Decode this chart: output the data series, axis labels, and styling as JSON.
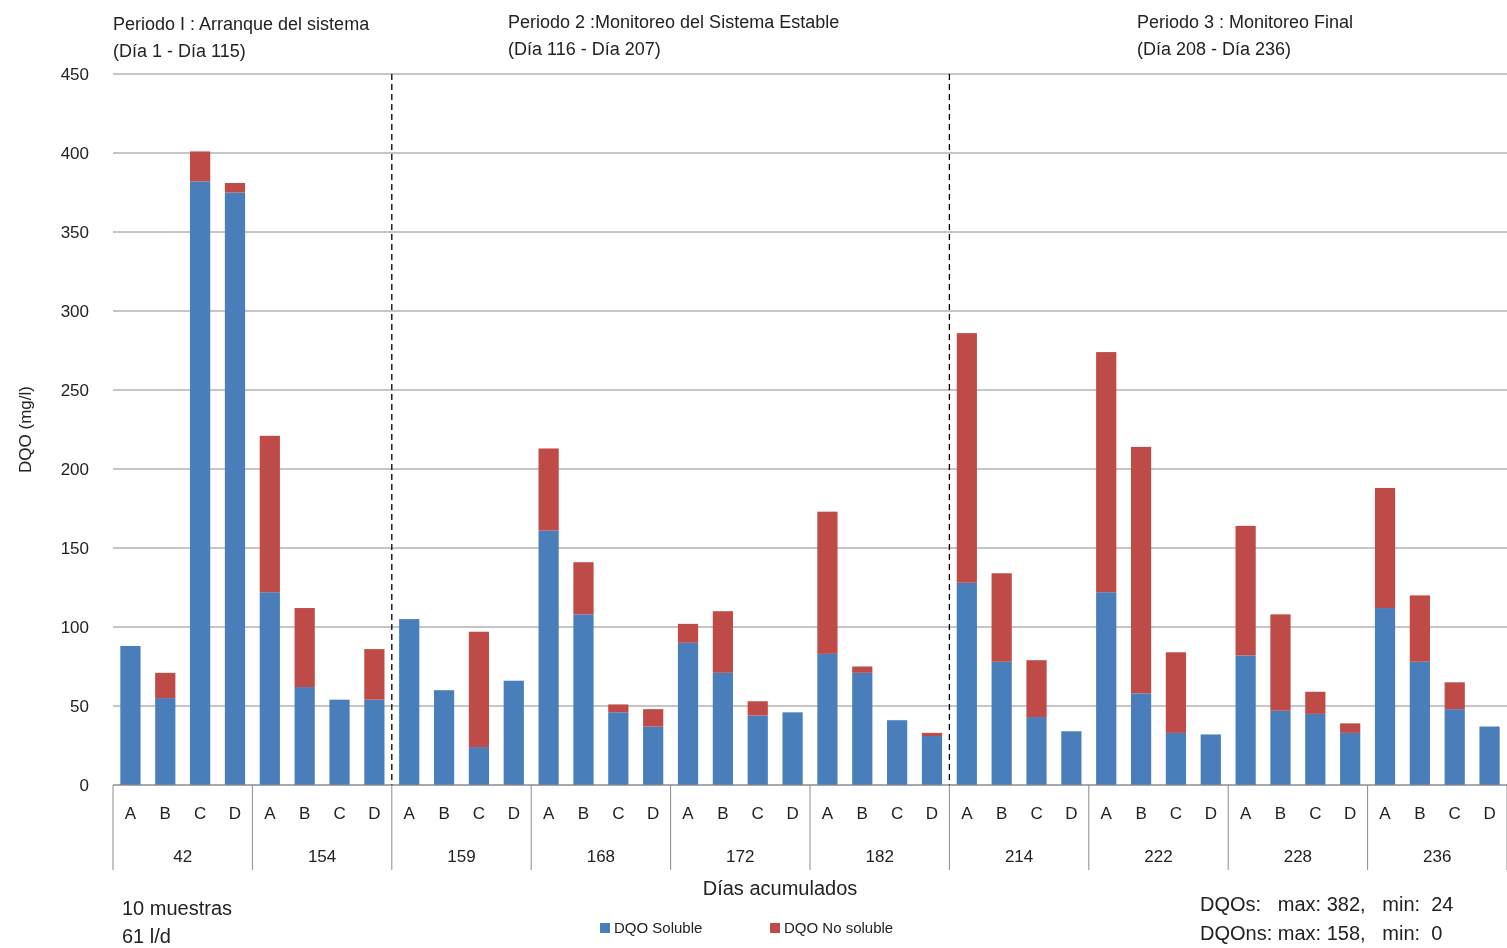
{
  "chart_data": {
    "type": "bar",
    "stacked": true,
    "xlabel": "Días acumulados",
    "ylabel": "DQO (mg/l)",
    "categories": [
      "A",
      "B",
      "C",
      "D",
      "A",
      "B",
      "C",
      "D",
      "A",
      "B",
      "C",
      "D",
      "A",
      "B",
      "C",
      "D",
      "A",
      "B",
      "C",
      "D",
      "A",
      "B",
      "C",
      "D",
      "A",
      "B",
      "C",
      "D",
      "A",
      "B",
      "C",
      "D",
      "A",
      "B",
      "C",
      "D",
      "A",
      "B",
      "C",
      "D"
    ],
    "series": [
      {
        "name": "DQO Soluble",
        "color": "#4a7ebb",
        "values": [
          88,
          55,
          382,
          375,
          122,
          62,
          54,
          54,
          105,
          60,
          24,
          66,
          161,
          108,
          46,
          37,
          90,
          71,
          44,
          46,
          83,
          71,
          41,
          31,
          128,
          78,
          43,
          34,
          122,
          58,
          33,
          32,
          82,
          47,
          45,
          33,
          112,
          78,
          48,
          37
        ]
      },
      {
        "name": "DQO No soluble",
        "color": "#be4b48",
        "values": [
          0,
          16,
          19,
          6,
          99,
          50,
          0,
          32,
          0,
          0,
          73,
          0,
          52,
          33,
          5,
          11,
          12,
          39,
          9,
          0,
          90,
          4,
          0,
          2,
          158,
          56,
          36,
          0,
          152,
          156,
          51,
          0,
          82,
          61,
          14,
          6,
          76,
          42,
          17,
          0
        ]
      }
    ],
    "ylim": [
      0,
      450
    ],
    "yticks": [
      0,
      50,
      100,
      150,
      200,
      250,
      300,
      350,
      400,
      450
    ],
    "grid": "y",
    "legend": "bottom",
    "annotations": [
      "42",
      "154",
      "159",
      "168",
      "172",
      "182",
      "214",
      "222",
      "228",
      "236",
      "Periodo I : Arranque del sistema\n(Día 1 - Día 115)",
      "Periodo 2 :Monitoreo del Sistema Estable\n(Día 116 - Día 207)",
      "Periodo 3 : Monitoreo Final\n(Día 208 - Día 236)",
      "10 muestras\n61 l/d",
      "DQOs:   max: 382,   min:  24\nDQOns: max: 158,   min:  0"
    ]
  }
}
